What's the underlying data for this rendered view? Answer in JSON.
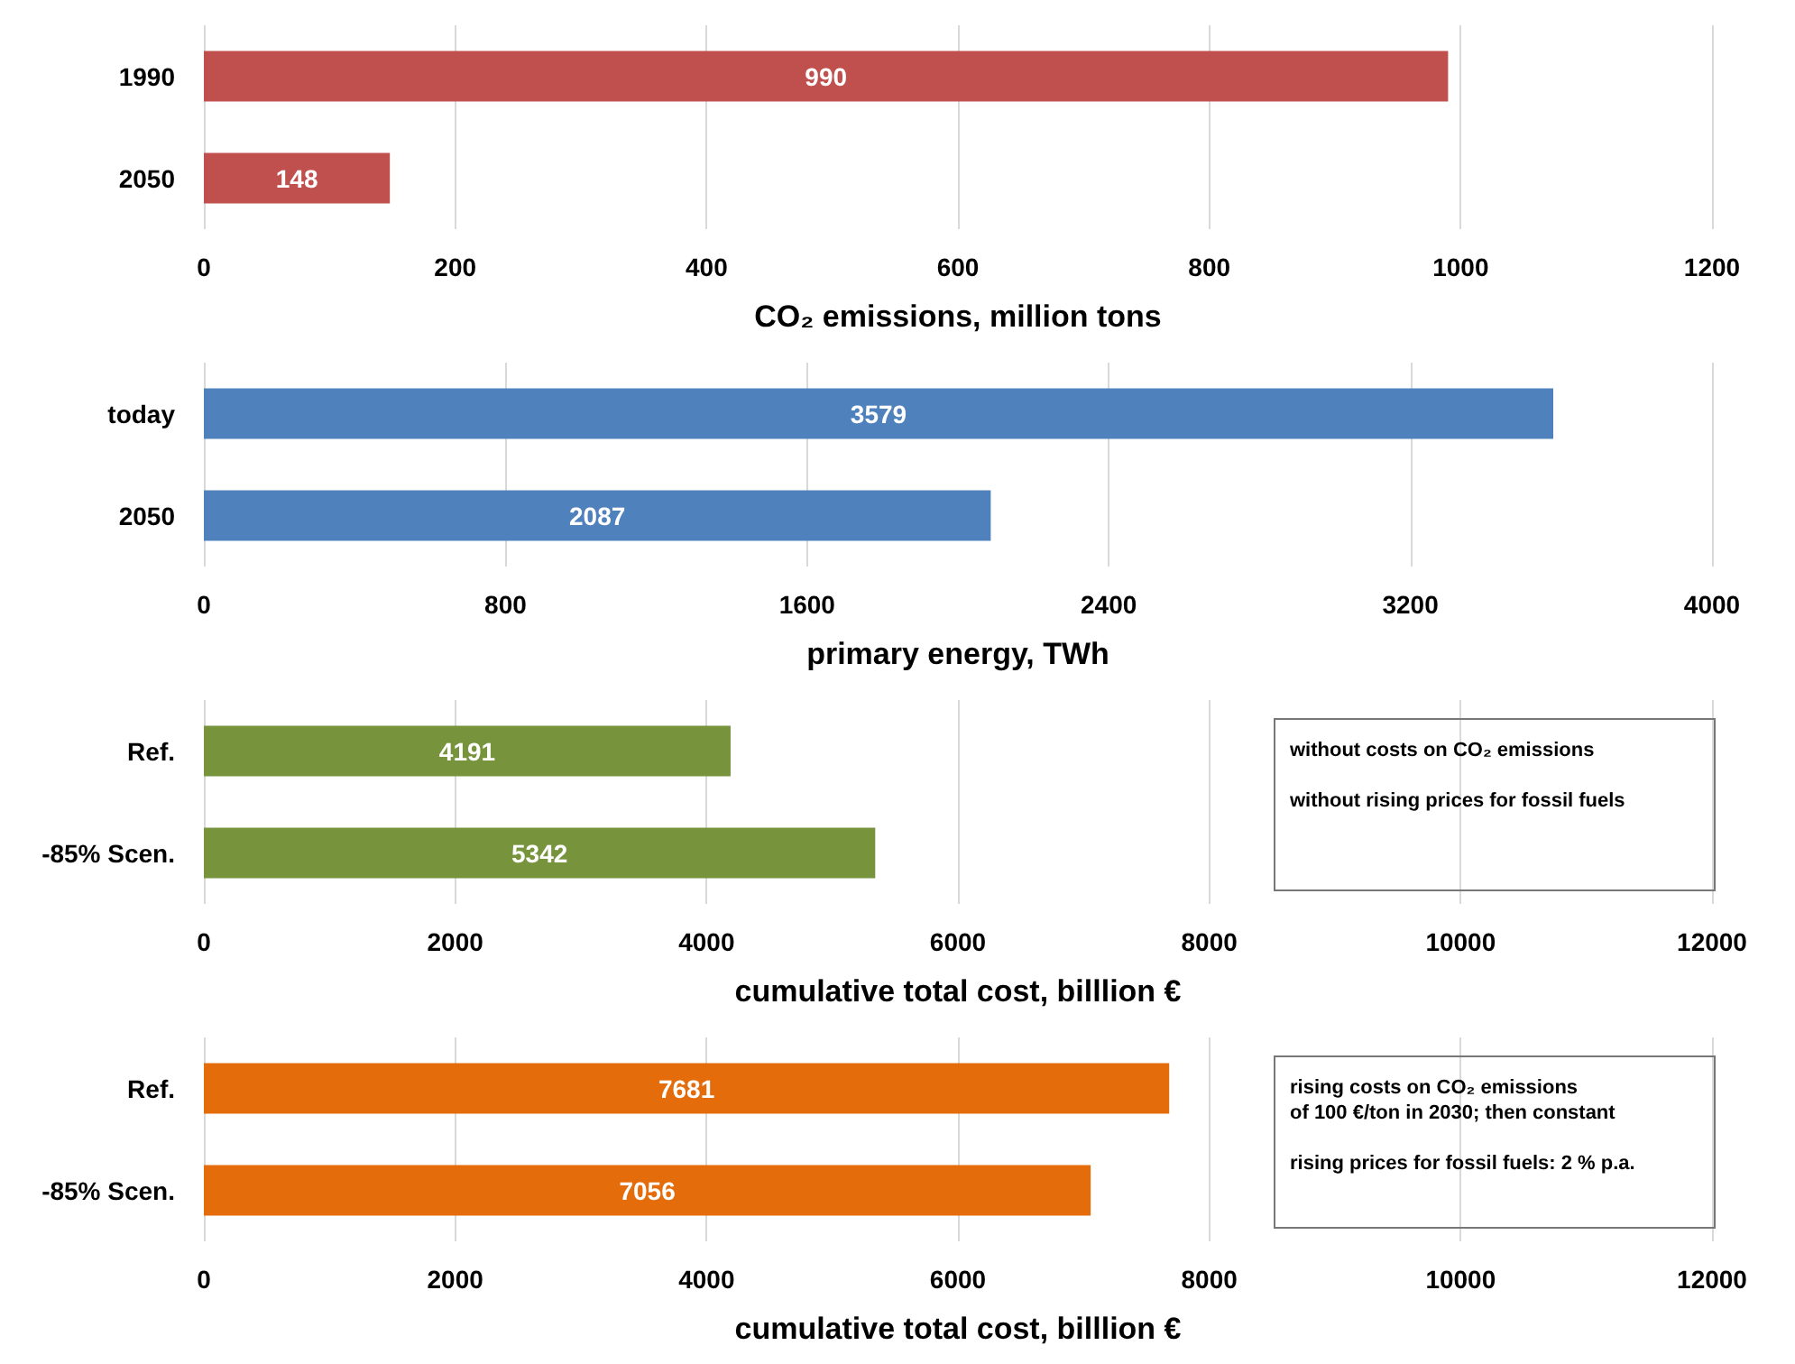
{
  "chart_data": [
    {
      "type": "bar",
      "orientation": "horizontal",
      "categories": [
        "1990",
        "2050"
      ],
      "values": [
        990,
        148
      ],
      "color": "#c0504d",
      "xlim": [
        0,
        1200
      ],
      "xticks": [
        0,
        200,
        400,
        600,
        800,
        1000,
        1200
      ],
      "xlabel": "CO₂ emissions, million tons",
      "grid": "x",
      "data_labels": true
    },
    {
      "type": "bar",
      "orientation": "horizontal",
      "categories": [
        "today",
        "2050"
      ],
      "values": [
        3579,
        2087
      ],
      "color": "#4f81bd",
      "xlim": [
        0,
        4000
      ],
      "xticks": [
        0,
        800,
        1600,
        2400,
        3200,
        4000
      ],
      "xlabel": "primary energy, TWh",
      "grid": "x",
      "data_labels": true
    },
    {
      "type": "bar",
      "orientation": "horizontal",
      "categories": [
        "Ref.",
        "-85% Scen."
      ],
      "values": [
        4191,
        5342
      ],
      "color": "#77933c",
      "xlim": [
        0,
        12000
      ],
      "xticks": [
        0,
        2000,
        4000,
        6000,
        8000,
        10000,
        12000
      ],
      "xlabel": "cumulative total cost, billlion €",
      "grid": "x",
      "data_labels": true,
      "annotations": [
        "without costs on CO₂ emissions",
        "without rising prices for fossil fuels"
      ]
    },
    {
      "type": "bar",
      "orientation": "horizontal",
      "categories": [
        "Ref.",
        "-85% Scen."
      ],
      "values": [
        7681,
        7056
      ],
      "color": "#e46c0a",
      "xlim": [
        0,
        12000
      ],
      "xticks": [
        0,
        2000,
        4000,
        6000,
        8000,
        10000,
        12000
      ],
      "xlabel": "cumulative total cost, billlion €",
      "grid": "x",
      "data_labels": true,
      "annotations": [
        "rising costs on CO₂ emissions\nof 100 €/ton in 2030; then constant",
        "rising prices for fossil fuels:  2 % p.a."
      ]
    }
  ]
}
